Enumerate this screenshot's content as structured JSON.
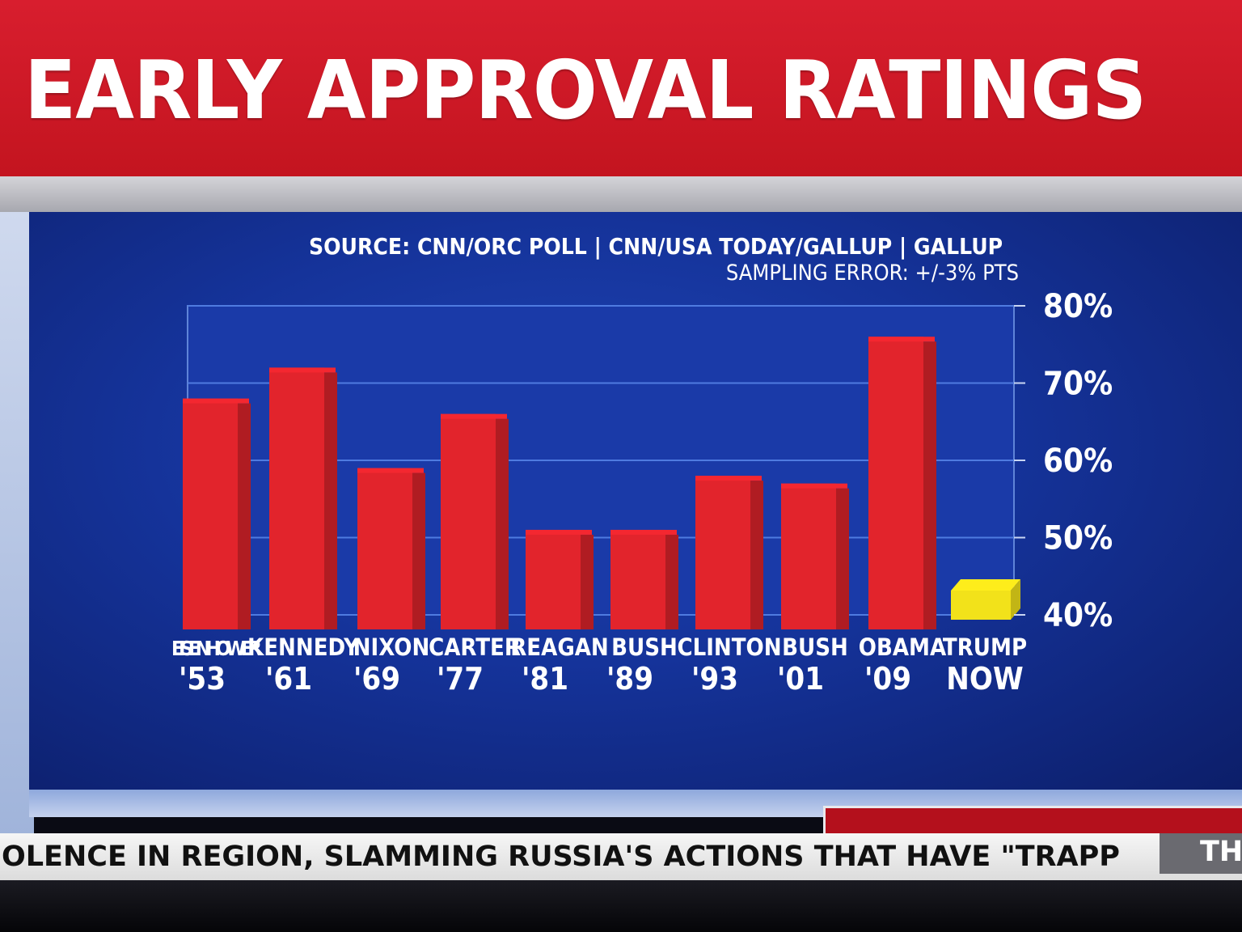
{
  "header": {
    "title": "EARLY APPROVAL RATINGS"
  },
  "notes": {
    "source": "SOURCE: CNN/ORC POLL | CNN/USA TODAY/GALLUP | GALLUP",
    "sampling": "SAMPLING ERROR: +/-3% PTS"
  },
  "chart_data": {
    "type": "bar",
    "title": "EARLY APPROVAL RATINGS",
    "categories": [
      "EISENHOWER",
      "KENNEDY",
      "NIXON",
      "CARTER",
      "REAGAN",
      "BUSH",
      "CLINTON",
      "BUSH",
      "OBAMA",
      "TRUMP"
    ],
    "years": [
      "'53",
      "'61",
      "'69",
      "'77",
      "'81",
      "'89",
      "'93",
      "'01",
      "'09",
      "NOW"
    ],
    "values": [
      68,
      72,
      59,
      66,
      51,
      51,
      58,
      57,
      76,
      44
    ],
    "colors": [
      "#e2242c",
      "#e2242c",
      "#e2242c",
      "#e2242c",
      "#e2242c",
      "#e2242c",
      "#e2242c",
      "#e2242c",
      "#e2242c",
      "#f2e21a"
    ],
    "yticks": [
      "80%",
      "70%",
      "60%",
      "50%",
      "40%"
    ],
    "ytick_values": [
      80,
      70,
      60,
      50,
      40
    ],
    "ylim": [
      40,
      80
    ],
    "grid": true,
    "legend": "none"
  },
  "ticker": {
    "text": "OLENCE IN REGION, SLAMMING RUSSIA'S ACTIONS THAT HAVE \"TRAPP",
    "next": "TH"
  },
  "colors": {
    "title_band": "#d01a26",
    "panel": "#15339a",
    "bar": "#e2242c",
    "highlight_bar": "#f2e21a"
  }
}
